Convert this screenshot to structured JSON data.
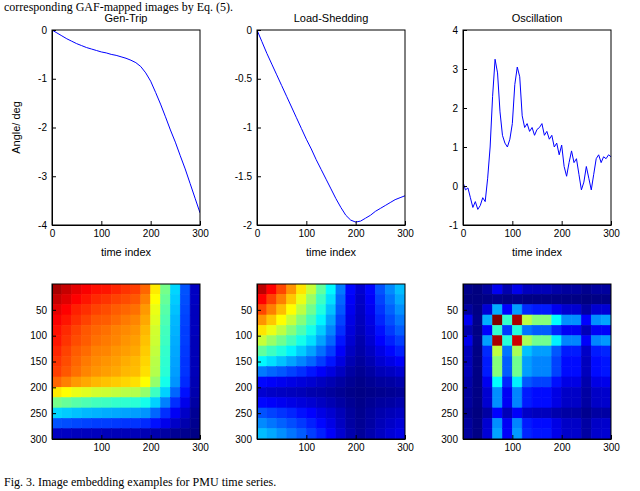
{
  "header_text": "corresponding GAF-mapped images by Eq. (5).",
  "caption": "Fig. 3. Image embedding examples for PMU time series.",
  "chart_data": [
    {
      "type": "line",
      "title": "Gen-Trip",
      "xlabel": "time index",
      "ylabel": "Angle/ deg",
      "color": "#0000ff",
      "xlim": [
        0,
        300
      ],
      "xticks": [
        0,
        100,
        200,
        300
      ],
      "ylim": [
        -4,
        0
      ],
      "yticks": [
        -4,
        -3,
        -2,
        -1,
        0
      ],
      "x": [
        0,
        10,
        20,
        30,
        40,
        50,
        60,
        70,
        80,
        90,
        100,
        110,
        120,
        130,
        140,
        150,
        160,
        170,
        180,
        190,
        200,
        210,
        220,
        230,
        240,
        250,
        260,
        270,
        280,
        290,
        300
      ],
      "values": [
        0,
        -0.06,
        -0.12,
        -0.18,
        -0.23,
        -0.28,
        -0.32,
        -0.36,
        -0.39,
        -0.42,
        -0.45,
        -0.47,
        -0.5,
        -0.52,
        -0.55,
        -0.58,
        -0.62,
        -0.67,
        -0.75,
        -0.88,
        -1.05,
        -1.28,
        -1.52,
        -1.78,
        -2.05,
        -2.3,
        -2.58,
        -2.85,
        -3.15,
        -3.45,
        -3.75
      ]
    },
    {
      "type": "line",
      "title": "Load-Shedding",
      "xlabel": "time index",
      "color": "#0000ff",
      "xlim": [
        0,
        300
      ],
      "xticks": [
        0,
        100,
        200,
        300
      ],
      "ylim": [
        -2,
        0
      ],
      "yticks": [
        -2,
        -1.5,
        -1,
        -0.5,
        0
      ],
      "x": [
        0,
        10,
        20,
        30,
        40,
        50,
        60,
        70,
        80,
        90,
        100,
        110,
        120,
        130,
        140,
        150,
        160,
        170,
        180,
        190,
        200,
        210,
        220,
        230,
        240,
        250,
        260,
        270,
        280,
        290,
        300
      ],
      "values": [
        0,
        -0.12,
        -0.24,
        -0.35,
        -0.46,
        -0.57,
        -0.68,
        -0.79,
        -0.9,
        -1.01,
        -1.12,
        -1.22,
        -1.33,
        -1.43,
        -1.53,
        -1.63,
        -1.73,
        -1.82,
        -1.9,
        -1.95,
        -1.97,
        -1.96,
        -1.93,
        -1.9,
        -1.86,
        -1.83,
        -1.8,
        -1.77,
        -1.74,
        -1.72,
        -1.7
      ]
    },
    {
      "type": "line",
      "title": "Oscillation",
      "xlabel": "time index",
      "color": "#0000ff",
      "xlim": [
        0,
        300
      ],
      "xticks": [
        0,
        100,
        200,
        300
      ],
      "ylim": [
        -1,
        4
      ],
      "yticks": [
        -1,
        0,
        1,
        2,
        3,
        4
      ],
      "x": [
        0,
        5,
        10,
        15,
        20,
        25,
        30,
        35,
        40,
        45,
        50,
        55,
        60,
        65,
        70,
        75,
        80,
        85,
        90,
        95,
        100,
        105,
        110,
        115,
        120,
        125,
        130,
        135,
        140,
        145,
        150,
        155,
        160,
        165,
        170,
        175,
        180,
        185,
        190,
        195,
        200,
        205,
        210,
        215,
        220,
        225,
        230,
        235,
        240,
        245,
        250,
        255,
        260,
        265,
        270,
        275,
        280,
        285,
        290,
        295,
        300
      ],
      "values": [
        0.1,
        -0.1,
        -0.05,
        -0.3,
        -0.55,
        -0.4,
        -0.6,
        -0.5,
        -0.3,
        -0.4,
        0.2,
        1.0,
        2.3,
        3.25,
        2.9,
        1.9,
        1.3,
        1.1,
        1.0,
        1.2,
        1.6,
        2.6,
        3.05,
        2.8,
        1.8,
        1.5,
        1.6,
        1.4,
        1.5,
        1.3,
        1.45,
        1.5,
        1.6,
        1.3,
        1.4,
        1.2,
        1.3,
        1.0,
        1.1,
        0.8,
        1.05,
        0.5,
        0.25,
        0.6,
        0.9,
        0.6,
        0.7,
        0.3,
        -0.1,
        0.1,
        0.5,
        0.2,
        -0.1,
        0.3,
        0.7,
        0.8,
        0.6,
        0.75,
        0.7,
        0.8,
        0.75
      ]
    },
    {
      "type": "heatmap",
      "xlim": [
        0,
        300
      ],
      "xticks": [
        100,
        200,
        300
      ],
      "ylim": [
        0,
        300
      ],
      "yticks": [
        50,
        100,
        150,
        200,
        250,
        300
      ],
      "zlim": [
        -1,
        1
      ],
      "x": [
        10,
        30,
        50,
        70,
        90,
        110,
        130,
        150,
        170,
        190,
        210,
        230,
        250,
        270,
        290
      ],
      "y": [
        10,
        30,
        50,
        70,
        90,
        110,
        130,
        150,
        170,
        190,
        210,
        230,
        250,
        270,
        290
      ],
      "cells": [
        [
          0.92,
          0.86,
          0.8,
          0.76,
          0.72,
          0.71,
          0.68,
          0.65,
          0.63,
          0.55,
          0.29,
          -0.02,
          -0.33,
          -0.59,
          -0.87
        ],
        [
          0.86,
          0.81,
          0.75,
          0.71,
          0.67,
          0.65,
          0.62,
          0.6,
          0.58,
          0.5,
          0.25,
          -0.05,
          -0.35,
          -0.6,
          -0.87
        ],
        [
          0.8,
          0.75,
          0.69,
          0.66,
          0.62,
          0.6,
          0.57,
          0.55,
          0.53,
          0.45,
          0.21,
          -0.08,
          -0.37,
          -0.61,
          -0.88
        ],
        [
          0.76,
          0.71,
          0.66,
          0.62,
          0.58,
          0.57,
          0.54,
          0.51,
          0.49,
          0.42,
          0.19,
          -0.1,
          -0.39,
          -0.62,
          -0.88
        ],
        [
          0.72,
          0.67,
          0.62,
          0.58,
          0.55,
          0.53,
          0.5,
          0.48,
          0.46,
          0.39,
          0.16,
          -0.12,
          -0.4,
          -0.63,
          -0.88
        ],
        [
          0.71,
          0.65,
          0.6,
          0.57,
          0.53,
          0.51,
          0.49,
          0.46,
          0.44,
          0.37,
          0.15,
          -0.13,
          -0.41,
          -0.63,
          -0.89
        ],
        [
          0.68,
          0.62,
          0.57,
          0.54,
          0.5,
          0.49,
          0.46,
          0.44,
          0.42,
          0.35,
          0.13,
          -0.15,
          -0.42,
          -0.64,
          -0.89
        ],
        [
          0.65,
          0.6,
          0.55,
          0.51,
          0.48,
          0.46,
          0.44,
          0.41,
          0.39,
          0.33,
          0.11,
          -0.16,
          -0.43,
          -0.65,
          -0.89
        ],
        [
          0.63,
          0.58,
          0.53,
          0.49,
          0.46,
          0.44,
          0.42,
          0.39,
          0.38,
          0.31,
          0.1,
          -0.17,
          -0.44,
          -0.65,
          -0.89
        ],
        [
          0.55,
          0.5,
          0.45,
          0.42,
          0.39,
          0.37,
          0.35,
          0.33,
          0.31,
          0.25,
          0.04,
          -0.21,
          -0.46,
          -0.67,
          -0.9
        ],
        [
          0.29,
          0.25,
          0.21,
          0.19,
          0.16,
          0.15,
          0.13,
          0.11,
          0.1,
          0.04,
          -0.13,
          -0.34,
          -0.55,
          -0.72,
          -0.91
        ],
        [
          -0.02,
          -0.05,
          -0.08,
          -0.1,
          -0.12,
          -0.13,
          -0.15,
          -0.16,
          -0.17,
          -0.21,
          -0.34,
          -0.5,
          -0.66,
          -0.79,
          -0.93
        ],
        [
          -0.33,
          -0.35,
          -0.37,
          -0.39,
          -0.4,
          -0.41,
          -0.42,
          -0.43,
          -0.44,
          -0.46,
          -0.55,
          -0.66,
          -0.77,
          -0.86,
          -0.96
        ],
        [
          -0.59,
          -0.6,
          -0.61,
          -0.62,
          -0.63,
          -0.63,
          -0.64,
          -0.65,
          -0.65,
          -0.67,
          -0.72,
          -0.79,
          -0.86,
          -0.91,
          -0.97
        ],
        [
          -0.87,
          -0.87,
          -0.88,
          -0.88,
          -0.88,
          -0.89,
          -0.89,
          -0.89,
          -0.89,
          -0.9,
          -0.91,
          -0.93,
          -0.96,
          -0.97,
          -0.99
        ]
      ]
    },
    {
      "type": "heatmap",
      "xlim": [
        0,
        300
      ],
      "xticks": [
        100,
        200,
        300
      ],
      "ylim": [
        0,
        300
      ],
      "yticks": [
        50,
        100,
        150,
        200,
        250,
        300
      ],
      "zlim": [
        -1,
        1
      ],
      "x": [
        10,
        30,
        50,
        70,
        90,
        110,
        130,
        150,
        170,
        190,
        210,
        230,
        250,
        270,
        290
      ],
      "y": [
        10,
        30,
        50,
        70,
        90,
        110,
        130,
        150,
        170,
        190,
        210,
        230,
        250,
        270,
        290
      ],
      "cells": [
        [
          0.88,
          0.75,
          0.61,
          0.46,
          0.3,
          0.14,
          -0.06,
          -0.26,
          -0.51,
          -0.74,
          -0.84,
          -0.74,
          -0.59,
          -0.48,
          -0.38
        ],
        [
          0.75,
          0.62,
          0.5,
          0.36,
          0.21,
          0.05,
          -0.13,
          -0.31,
          -0.55,
          -0.76,
          -0.86,
          -0.76,
          -0.62,
          -0.52,
          -0.42
        ],
        [
          0.61,
          0.5,
          0.38,
          0.25,
          0.12,
          -0.03,
          -0.19,
          -0.37,
          -0.58,
          -0.78,
          -0.87,
          -0.78,
          -0.65,
          -0.56,
          -0.47
        ],
        [
          0.46,
          0.36,
          0.25,
          0.14,
          0.01,
          -0.12,
          -0.27,
          -0.43,
          -0.62,
          -0.8,
          -0.88,
          -0.8,
          -0.68,
          -0.6,
          -0.52
        ],
        [
          0.3,
          0.21,
          0.12,
          0.01,
          -0.1,
          -0.21,
          -0.35,
          -0.49,
          -0.66,
          -0.82,
          -0.89,
          -0.82,
          -0.72,
          -0.64,
          -0.57
        ],
        [
          0.14,
          0.05,
          -0.03,
          -0.12,
          -0.21,
          -0.31,
          -0.43,
          -0.55,
          -0.71,
          -0.84,
          -0.91,
          -0.84,
          -0.75,
          -0.69,
          -0.63
        ],
        [
          -0.06,
          -0.13,
          -0.19,
          -0.27,
          -0.35,
          -0.43,
          -0.53,
          -0.63,
          -0.76,
          -0.87,
          -0.92,
          -0.87,
          -0.8,
          -0.74,
          -0.69
        ],
        [
          -0.26,
          -0.31,
          -0.37,
          -0.43,
          -0.49,
          -0.55,
          -0.63,
          -0.71,
          -0.81,
          -0.9,
          -0.94,
          -0.9,
          -0.84,
          -0.8,
          -0.76
        ],
        [
          -0.51,
          -0.55,
          -0.58,
          -0.62,
          -0.66,
          -0.71,
          -0.76,
          -0.81,
          -0.87,
          -0.93,
          -0.96,
          -0.93,
          -0.89,
          -0.87,
          -0.84
        ],
        [
          -0.74,
          -0.76,
          -0.78,
          -0.8,
          -0.82,
          -0.84,
          -0.87,
          -0.9,
          -0.93,
          -0.96,
          -0.98,
          -0.96,
          -0.94,
          -0.93,
          -0.91
        ],
        [
          -0.84,
          -0.86,
          -0.87,
          -0.88,
          -0.89,
          -0.91,
          -0.92,
          -0.94,
          -0.96,
          -0.98,
          -0.99,
          -0.98,
          -0.97,
          -0.96,
          -0.95
        ],
        [
          -0.74,
          -0.76,
          -0.78,
          -0.8,
          -0.82,
          -0.84,
          -0.87,
          -0.9,
          -0.93,
          -0.96,
          -0.98,
          -0.96,
          -0.94,
          -0.93,
          -0.91
        ],
        [
          -0.59,
          -0.62,
          -0.65,
          -0.68,
          -0.72,
          -0.75,
          -0.8,
          -0.84,
          -0.89,
          -0.94,
          -0.97,
          -0.94,
          -0.91,
          -0.89,
          -0.87
        ],
        [
          -0.48,
          -0.52,
          -0.56,
          -0.6,
          -0.64,
          -0.69,
          -0.74,
          -0.8,
          -0.87,
          -0.93,
          -0.96,
          -0.93,
          -0.89,
          -0.86,
          -0.83
        ],
        [
          -0.38,
          -0.42,
          -0.47,
          -0.52,
          -0.57,
          -0.63,
          -0.69,
          -0.76,
          -0.84,
          -0.91,
          -0.95,
          -0.91,
          -0.87,
          -0.83,
          -0.8
        ]
      ]
    },
    {
      "type": "heatmap",
      "xlim": [
        0,
        300
      ],
      "xticks": [
        100,
        200,
        300
      ],
      "ylim": [
        0,
        300
      ],
      "yticks": [
        50,
        100,
        150,
        200,
        250,
        300
      ],
      "zlim": [
        -1,
        1
      ],
      "x": [
        10,
        30,
        50,
        70,
        90,
        110,
        130,
        150,
        170,
        190,
        210,
        230,
        250,
        270,
        290
      ],
      "y": [
        10,
        30,
        50,
        70,
        90,
        110,
        130,
        150,
        170,
        190,
        210,
        230,
        250,
        270,
        290
      ],
      "cells": [
        [
          -0.98,
          -1.0,
          -0.94,
          -0.78,
          -0.91,
          -0.79,
          -0.88,
          -0.89,
          -0.89,
          -0.92,
          -0.94,
          -0.94,
          -0.97,
          -0.94,
          -0.94
        ],
        [
          -1.0,
          -1.0,
          -0.99,
          -0.98,
          -0.99,
          -0.98,
          -0.99,
          -0.99,
          -0.99,
          -0.99,
          -0.99,
          -0.99,
          -1.0,
          -0.99,
          -0.99
        ],
        [
          -0.94,
          -0.99,
          -0.83,
          -0.41,
          -0.75,
          -0.44,
          -0.67,
          -0.7,
          -0.7,
          -0.78,
          -0.84,
          -0.84,
          -0.93,
          -0.84,
          -0.83
        ],
        [
          -0.78,
          -0.98,
          -0.41,
          1.0,
          -0.15,
          0.92,
          0.12,
          0.01,
          0.01,
          -0.25,
          -0.47,
          -0.47,
          -0.75,
          -0.47,
          -0.43
        ],
        [
          -0.91,
          -0.99,
          -0.75,
          -0.15,
          -0.64,
          -0.18,
          -0.52,
          -0.57,
          -0.57,
          -0.68,
          -0.77,
          -0.77,
          -0.89,
          -0.77,
          -0.76
        ],
        [
          -0.79,
          -0.98,
          -0.44,
          0.92,
          -0.18,
          0.85,
          0.08,
          -0.03,
          -0.03,
          -0.28,
          -0.49,
          -0.49,
          -0.76,
          -0.49,
          -0.45
        ],
        [
          -0.88,
          -0.99,
          -0.67,
          0.12,
          -0.52,
          0.08,
          -0.37,
          -0.44,
          -0.44,
          -0.58,
          -0.7,
          -0.7,
          -0.86,
          -0.7,
          -0.68
        ],
        [
          -0.89,
          -0.99,
          -0.7,
          0.01,
          -0.57,
          -0.03,
          -0.44,
          -0.49,
          -0.49,
          -0.62,
          -0.73,
          -0.73,
          -0.88,
          -0.73,
          -0.71
        ],
        [
          -0.89,
          -0.99,
          -0.7,
          0.01,
          -0.57,
          -0.03,
          -0.44,
          -0.49,
          -0.49,
          -0.62,
          -0.73,
          -0.73,
          -0.88,
          -0.73,
          -0.71
        ],
        [
          -0.92,
          -0.99,
          -0.78,
          -0.25,
          -0.68,
          -0.28,
          -0.58,
          -0.62,
          -0.62,
          -0.72,
          -0.8,
          -0.8,
          -0.91,
          -0.8,
          -0.79
        ],
        [
          -0.94,
          -0.99,
          -0.84,
          -0.47,
          -0.77,
          -0.49,
          -0.7,
          -0.73,
          -0.73,
          -0.8,
          -0.86,
          -0.86,
          -0.93,
          -0.86,
          -0.85
        ],
        [
          -0.94,
          -0.99,
          -0.84,
          -0.47,
          -0.77,
          -0.49,
          -0.7,
          -0.73,
          -0.73,
          -0.8,
          -0.86,
          -0.86,
          -0.93,
          -0.86,
          -0.85
        ],
        [
          -0.97,
          -1.0,
          -0.93,
          -0.75,
          -0.89,
          -0.76,
          -0.86,
          -0.88,
          -0.88,
          -0.91,
          -0.93,
          -0.93,
          -0.97,
          -0.93,
          -0.93
        ],
        [
          -0.94,
          -0.99,
          -0.84,
          -0.47,
          -0.77,
          -0.49,
          -0.7,
          -0.73,
          -0.73,
          -0.8,
          -0.86,
          -0.86,
          -0.93,
          -0.86,
          -0.85
        ],
        [
          -0.94,
          -0.99,
          -0.83,
          -0.43,
          -0.76,
          -0.45,
          -0.68,
          -0.71,
          -0.71,
          -0.79,
          -0.85,
          -0.85,
          -0.93,
          -0.85,
          -0.84
        ]
      ]
    }
  ]
}
